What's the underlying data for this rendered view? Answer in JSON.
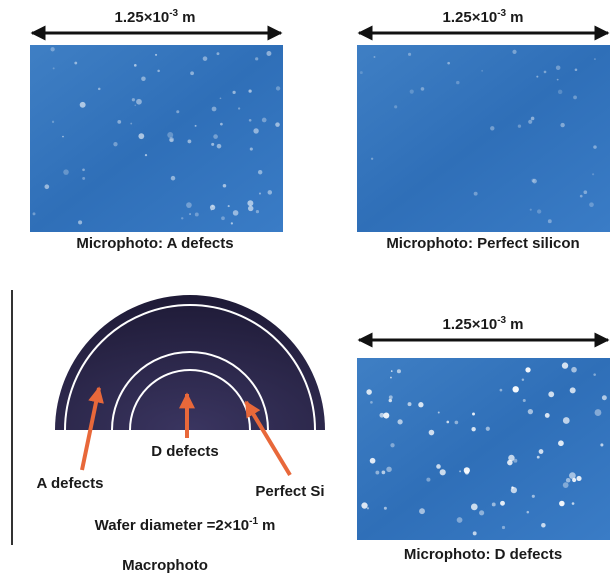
{
  "top_left": {
    "scale": {
      "base": "1.25×10",
      "exponent": "-3",
      "unit": "m"
    },
    "caption": "Microphoto: A defects"
  },
  "top_right": {
    "scale": {
      "base": "1.25×10",
      "exponent": "-3",
      "unit": "m"
    },
    "caption": "Microphoto: Perfect silicon"
  },
  "bottom_right": {
    "scale": {
      "base": "1.25×10",
      "exponent": "-3",
      "unit": "m"
    },
    "caption": "Microphoto: D defects"
  },
  "macrophoto": {
    "labels": [
      "A defects",
      "D defects",
      "Perfect Si"
    ],
    "wafer_diameter": {
      "prefix": "Wafer diameter =2×10",
      "exponent": "-1",
      "unit": "m"
    },
    "caption": "Macrophoto"
  }
}
